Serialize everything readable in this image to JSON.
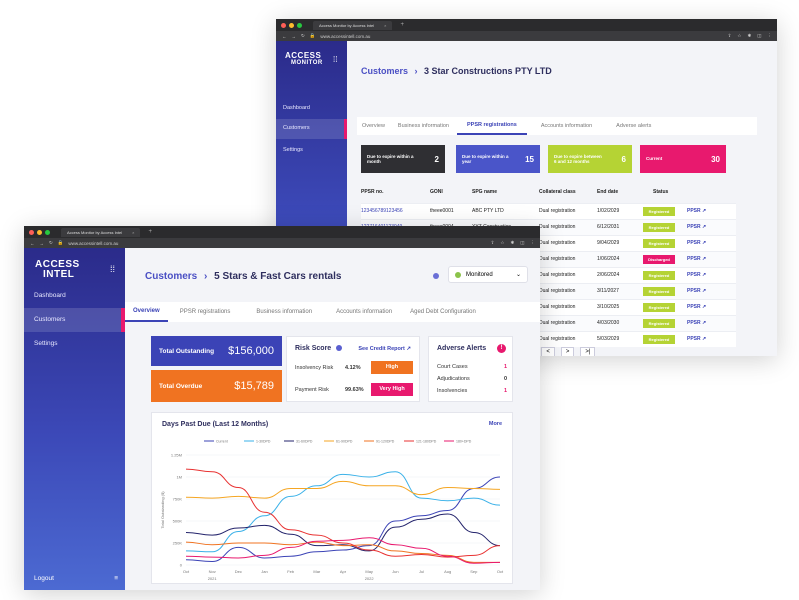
{
  "back_window": {
    "browser": {
      "tab_title": "Access Monitor by Access Intel",
      "url": "www.accessintell.com.au"
    },
    "sidebar": {
      "logo_top": "ACCESS",
      "logo_bottom": "MONITOR",
      "items": [
        {
          "label": "Dashboard"
        },
        {
          "label": "Customers"
        },
        {
          "label": "Settings"
        }
      ]
    },
    "header": {
      "crumb": "Customers",
      "separator": "›",
      "title": "3 Star Constructions PTY LTD"
    },
    "tabs": [
      "Overview",
      "Business information",
      "PPSR registrations",
      "Accounts information",
      "Adverse alerts"
    ],
    "stats": [
      {
        "label": "Due to expire within a month",
        "value": "2",
        "color": "#2f2f33"
      },
      {
        "label": "Due to expire within a year",
        "value": "15",
        "color": "#4a55c9"
      },
      {
        "label": "Due to expire between 6 and 12 months",
        "value": "6",
        "color": "#b5d334"
      },
      {
        "label": "Current",
        "value": "30",
        "color": "#e8196e"
      }
    ],
    "table": {
      "headers": [
        "PPSR no.",
        "GONI",
        "SPG name",
        "Collateral class",
        "End date",
        "Status"
      ],
      "rows": [
        [
          "123456789123456",
          "theee0001",
          "ABC PTY LTD",
          "Dual registration",
          "1/02/2029",
          "Registered",
          "PPSR"
        ],
        [
          "122716401123949",
          "theee0004",
          "XYZ Construction",
          "Dual registration",
          "6/12/2031",
          "Registered",
          "PPSR"
        ],
        [
          "125258723784658",
          "theee0005",
          "Block Out!",
          "Dual registration",
          "9/04/2029",
          "Registered",
          "PPSR"
        ],
        [
          "",
          "",
          "",
          "Dual registration",
          "1/06/2024",
          "Discharged",
          "PPSR"
        ],
        [
          "",
          "",
          "",
          "Dual registration",
          "2/06/2024",
          "Registered",
          "PPSR"
        ],
        [
          "",
          "",
          "",
          "Dual registration",
          "3/11/2027",
          "Registered",
          "PPSR"
        ],
        [
          "",
          "",
          "",
          "Dual registration",
          "3/10/2025",
          "Registered",
          "PPSR"
        ],
        [
          "",
          "",
          "",
          "Dual registration",
          "4/03/2030",
          "Registered",
          "PPSR"
        ],
        [
          "",
          "",
          "",
          "Dual registration",
          "5/03/2029",
          "Registered",
          "PPSR"
        ]
      ],
      "pagination": [
        "6",
        "<",
        ">",
        ">|"
      ]
    }
  },
  "front_window": {
    "browser": {
      "tab_title": "Access Monitor by Access Intel",
      "url": "www.accessintell.com.au"
    },
    "sidebar": {
      "logo_top": "ACCESS",
      "logo_bottom": "INTEL",
      "items": [
        {
          "label": "Dashboard"
        },
        {
          "label": "Customers"
        },
        {
          "label": "Settings"
        }
      ],
      "logout": "Logout"
    },
    "header": {
      "crumb": "Customers",
      "separator": "›",
      "title": "5 Stars & Fast Cars rentals",
      "monitor_label": "Monitored"
    },
    "tabs": [
      "Overview",
      "PPSR registrations",
      "Business information",
      "Accounts information",
      "Aged Debt Configuration"
    ],
    "totals": {
      "outstanding_label": "Total Outstanding",
      "outstanding_value": "$156,000",
      "overdue_label": "Total Overdue",
      "overdue_value": "$15,789"
    },
    "risk": {
      "title": "Risk Score",
      "link": "See Credit Report",
      "rows": [
        {
          "label": "Insolvency Risk",
          "pct": "4.12%",
          "level": "High",
          "color": "#f07321"
        },
        {
          "label": "Payment Risk",
          "pct": "99.63%",
          "level": "Very High",
          "color": "#e8196e"
        }
      ]
    },
    "adverse": {
      "title": "Adverse Alerts",
      "badge": "!",
      "rows": [
        {
          "label": "Court Cases",
          "value": "1"
        },
        {
          "label": "Adjudications",
          "value": "0"
        },
        {
          "label": "Insolvencies",
          "value": "1"
        }
      ]
    },
    "chart_title": "Days Past Due (Last 12 Months)",
    "chart_more": "More",
    "colors": {
      "brand": "#3b43b6",
      "pink": "#e8196e",
      "orange": "#f07321",
      "green": "#b5d334"
    }
  },
  "chart_data": {
    "type": "line",
    "title": "Days Past Due (Last 12 Months)",
    "ylabel": "Total Outstanding ($)",
    "xlabel": "",
    "x": [
      "Oct",
      "Nov",
      "Dec",
      "Jan",
      "Feb",
      "Mar",
      "Apr",
      "May",
      "Jun",
      "Jul",
      "Aug",
      "Sep",
      "Oct"
    ],
    "year_labels": [
      "2021",
      "2022"
    ],
    "yticks": [
      "0",
      "250K",
      "500K",
      "750K",
      "1M",
      "1.25M"
    ],
    "ylim": [
      0,
      1250000
    ],
    "series": [
      {
        "name": "Current",
        "color": "#3b43b6",
        "values": [
          60000,
          40000,
          200000,
          80000,
          100000,
          150000,
          170000,
          220000,
          500000,
          560000,
          620000,
          870000,
          1000000
        ]
      },
      {
        "name": "1-30DPD",
        "color": "#3ab1e8",
        "values": [
          160000,
          150000,
          380000,
          560000,
          780000,
          900000,
          1030000,
          1000000,
          1060000,
          760000,
          730000,
          760000,
          680000
        ]
      },
      {
        "name": "31-60DPD",
        "color": "#23236b",
        "values": [
          370000,
          340000,
          420000,
          450000,
          350000,
          220000,
          230000,
          160000,
          430000,
          520000,
          580000,
          370000,
          220000
        ]
      },
      {
        "name": "61-90DPD",
        "color": "#f5a623",
        "values": [
          770000,
          760000,
          780000,
          760000,
          870000,
          870000,
          950000,
          900000,
          900000,
          800000,
          880000,
          870000,
          860000
        ]
      },
      {
        "name": "91-120DPD",
        "color": "#f07321",
        "values": [
          260000,
          230000,
          250000,
          250000,
          230000,
          260000,
          220000,
          230000,
          160000,
          130000,
          110000,
          30000,
          30000
        ]
      },
      {
        "name": "121-180DPD",
        "color": "#e83232",
        "values": [
          1090000,
          1060000,
          880000,
          600000,
          400000,
          340000,
          250000,
          170000,
          100000,
          120000,
          90000,
          110000,
          220000
        ]
      },
      {
        "name": "180+DPD",
        "color": "#e8196e",
        "values": [
          100000,
          90000,
          80000,
          110000,
          200000,
          270000,
          280000,
          310000,
          230000,
          190000,
          100000,
          20000,
          30000
        ]
      }
    ],
    "grid": true,
    "legend": "top"
  }
}
